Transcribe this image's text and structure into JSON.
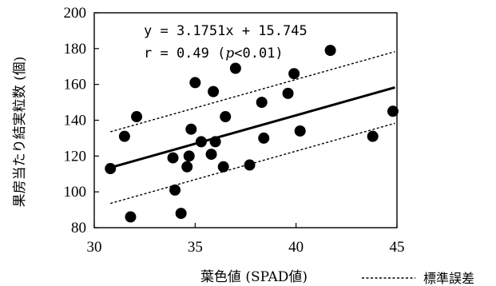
{
  "chart_data": {
    "type": "scatter",
    "xlabel": "葉色値 (SPAD値)",
    "ylabel": "果房当たり結実粒数 (個)",
    "xlim": [
      30,
      45
    ],
    "ylim": [
      80,
      200
    ],
    "x_ticks": [
      "30",
      "35",
      "40",
      "45"
    ],
    "y_ticks": [
      "80",
      "100",
      "120",
      "140",
      "160",
      "180",
      "200"
    ],
    "grid": false,
    "points": [
      {
        "x": 30.8,
        "y": 113
      },
      {
        "x": 31.5,
        "y": 131
      },
      {
        "x": 31.8,
        "y": 86
      },
      {
        "x": 32.1,
        "y": 142
      },
      {
        "x": 33.9,
        "y": 119
      },
      {
        "x": 34.0,
        "y": 101
      },
      {
        "x": 34.3,
        "y": 88
      },
      {
        "x": 34.6,
        "y": 114
      },
      {
        "x": 34.7,
        "y": 120
      },
      {
        "x": 34.8,
        "y": 135
      },
      {
        "x": 35.0,
        "y": 161
      },
      {
        "x": 35.3,
        "y": 128
      },
      {
        "x": 35.8,
        "y": 121
      },
      {
        "x": 35.9,
        "y": 156
      },
      {
        "x": 36.0,
        "y": 128
      },
      {
        "x": 36.4,
        "y": 114
      },
      {
        "x": 36.5,
        "y": 142
      },
      {
        "x": 37.0,
        "y": 169
      },
      {
        "x": 37.7,
        "y": 115
      },
      {
        "x": 38.3,
        "y": 150
      },
      {
        "x": 38.4,
        "y": 130
      },
      {
        "x": 39.6,
        "y": 155
      },
      {
        "x": 39.9,
        "y": 166
      },
      {
        "x": 40.2,
        "y": 134
      },
      {
        "x": 41.7,
        "y": 179
      },
      {
        "x": 43.8,
        "y": 131
      },
      {
        "x": 44.8,
        "y": 145
      }
    ],
    "regression": {
      "slope": 3.1751,
      "intercept": 15.745,
      "x_range": [
        30.8,
        44.9
      ]
    },
    "standard_error_offset": 20,
    "annotation": {
      "equation": "y = 3.1751x + 15.745",
      "r_prefix": "r = 0.49 (",
      "r_italic": "p",
      "r_suffix": "<0.01)"
    },
    "legend": {
      "label": "標準誤差",
      "position": "bottom-right"
    }
  }
}
